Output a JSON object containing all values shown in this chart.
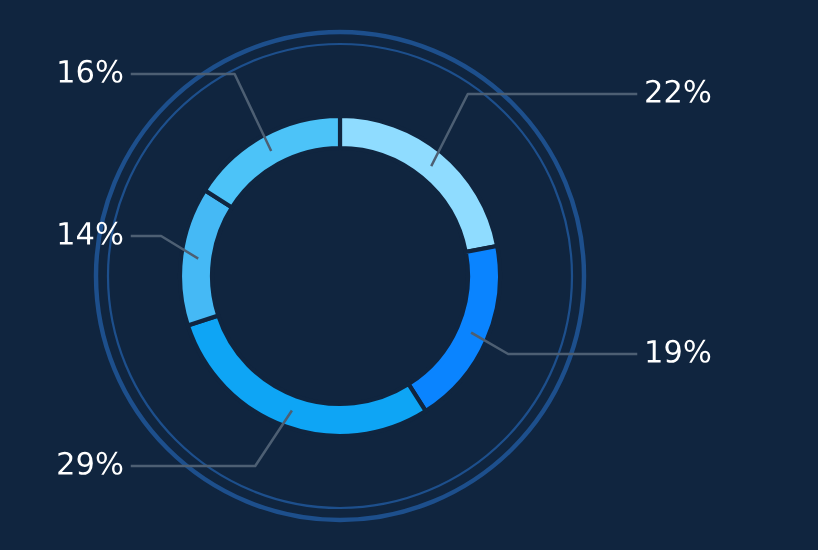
{
  "chart_data": {
    "type": "donut",
    "categories": [
      null,
      null,
      null,
      null,
      null
    ],
    "values": [
      22,
      19,
      29,
      14,
      16
    ],
    "colors": [
      "#8fdcff",
      "#0a84ff",
      "#0ea5f5",
      "#45b9f5",
      "#4cc3f8"
    ],
    "value_labels": [
      "22%",
      "19%",
      "29%",
      "14%",
      "16%"
    ]
  }
}
